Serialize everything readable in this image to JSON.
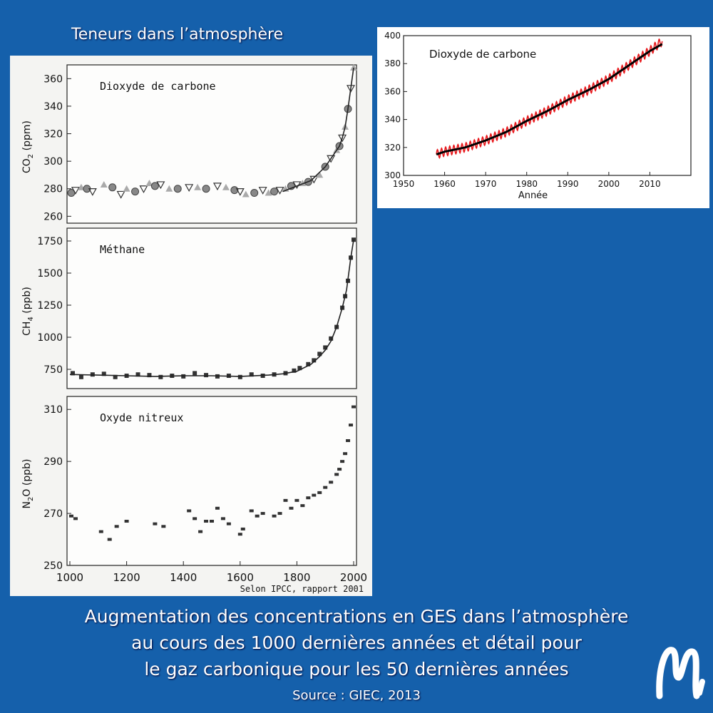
{
  "top_title": "Teneurs dans l’atmosphère",
  "caption": [
    "Augmentation des concentrations en GES dans l’atmosphère",
    "au cours des 1000 dernières années et détail pour",
    "le gaz carbonique pour les 50 dernières années"
  ],
  "source": "Source : GIEC, 2013",
  "credit": "Selon IPCC, rapport 2001",
  "colors": {
    "background": "#1560ab",
    "recent_series_red": "#e8181c",
    "recent_series_black": "#000000",
    "marker_gray": "#999999",
    "marker_dark": "#333333"
  },
  "chart_data": [
    {
      "type": "scatter",
      "title": "Dioxyde de carbone",
      "ylabel": "CO2 (ppm)",
      "xlim": [
        1000,
        2000
      ],
      "ylim": [
        255,
        370
      ],
      "yticks": [
        260,
        280,
        300,
        320,
        340,
        360
      ],
      "grid": false,
      "x": [
        1005,
        1020,
        1040,
        1060,
        1080,
        1120,
        1150,
        1180,
        1200,
        1230,
        1260,
        1280,
        1300,
        1320,
        1350,
        1380,
        1420,
        1450,
        1480,
        1520,
        1550,
        1580,
        1600,
        1620,
        1650,
        1680,
        1700,
        1720,
        1740,
        1760,
        1780,
        1800,
        1820,
        1840,
        1860,
        1880,
        1900,
        1920,
        1940,
        1950,
        1960,
        1970,
        1980,
        1990,
        2000
      ],
      "y": [
        277,
        279,
        281,
        280,
        278,
        283,
        281,
        276,
        280,
        278,
        280,
        284,
        282,
        283,
        280,
        280,
        281,
        281,
        280,
        282,
        281,
        279,
        278,
        276,
        277,
        279,
        277,
        278,
        279,
        280,
        282,
        283,
        284,
        285,
        287,
        290,
        296,
        302,
        308,
        311,
        317,
        325,
        338,
        353,
        368
      ],
      "line_x": [
        1750,
        1800,
        1850,
        1900,
        1920,
        1940,
        1950,
        1960,
        1970,
        1980,
        1990,
        2000
      ],
      "line_y": [
        278,
        282,
        286,
        296,
        302,
        308,
        311,
        317,
        325,
        338,
        353,
        368
      ]
    },
    {
      "type": "scatter",
      "title": "Méthane",
      "ylabel": "CH4 (ppb)",
      "xlim": [
        1000,
        2000
      ],
      "ylim": [
        600,
        1850
      ],
      "yticks": [
        750,
        1000,
        1250,
        1500,
        1750
      ],
      "grid": false,
      "x": [
        1010,
        1040,
        1080,
        1120,
        1160,
        1200,
        1240,
        1280,
        1320,
        1360,
        1400,
        1440,
        1480,
        1520,
        1560,
        1600,
        1640,
        1680,
        1720,
        1760,
        1790,
        1810,
        1840,
        1860,
        1880,
        1900,
        1920,
        1940,
        1960,
        1970,
        1980,
        1990,
        2000
      ],
      "y": [
        720,
        690,
        710,
        715,
        690,
        700,
        710,
        705,
        690,
        700,
        695,
        720,
        705,
        695,
        700,
        690,
        710,
        700,
        710,
        720,
        740,
        760,
        790,
        820,
        870,
        920,
        990,
        1080,
        1230,
        1320,
        1440,
        1620,
        1760
      ],
      "line_x": [
        1000,
        1100,
        1200,
        1300,
        1400,
        1500,
        1600,
        1700,
        1750,
        1800,
        1850,
        1880,
        1900,
        1920,
        1940,
        1960,
        1975,
        1990,
        2000
      ],
      "line_y": [
        710,
        705,
        700,
        695,
        700,
        700,
        695,
        705,
        715,
        735,
        790,
        850,
        900,
        970,
        1080,
        1230,
        1370,
        1620,
        1760
      ]
    },
    {
      "type": "scatter",
      "title": "Oxyde nitreux",
      "ylabel": "N2O (ppb)",
      "xlim": [
        1000,
        2000
      ],
      "ylim": [
        250,
        315
      ],
      "yticks": [
        250,
        270,
        290,
        310
      ],
      "xticks": [
        1000,
        1200,
        1400,
        1600,
        1800,
        2000
      ],
      "grid": false,
      "x": [
        1005,
        1020,
        1110,
        1140,
        1165,
        1200,
        1300,
        1330,
        1420,
        1440,
        1460,
        1480,
        1500,
        1520,
        1540,
        1560,
        1600,
        1610,
        1640,
        1660,
        1680,
        1720,
        1740,
        1760,
        1780,
        1800,
        1820,
        1840,
        1860,
        1880,
        1900,
        1920,
        1940,
        1950,
        1960,
        1970,
        1980,
        1990,
        2000
      ],
      "y": [
        269,
        268,
        263,
        260,
        265,
        267,
        266,
        265,
        271,
        268,
        263,
        267,
        267,
        272,
        268,
        266,
        262,
        264,
        271,
        269,
        270,
        269,
        270,
        275,
        272,
        275,
        273,
        276,
        277,
        278,
        280,
        282,
        285,
        287,
        290,
        293,
        298,
        304,
        311
      ]
    },
    {
      "type": "line",
      "title": "Dioxyde de carbone",
      "xlabel": "Année",
      "xlim": [
        1950,
        2020
      ],
      "ylim": [
        300,
        400
      ],
      "xticks": [
        1950,
        1960,
        1970,
        1980,
        1990,
        2000,
        2010
      ],
      "yticks": [
        300,
        320,
        340,
        360,
        380,
        400
      ],
      "grid": false,
      "series": [
        {
          "color": "#e8181c",
          "x": [
            1958,
            1960,
            1965,
            1970,
            1975,
            1980,
            1985,
            1990,
            1995,
            2000,
            2005,
            2010,
            2013
          ],
          "y": [
            315,
            317,
            320,
            325,
            331,
            339,
            346,
            354,
            361,
            369,
            379,
            389,
            396
          ]
        },
        {
          "color": "#000000",
          "x": [
            1958,
            1960,
            1965,
            1970,
            1975,
            1980,
            1985,
            1990,
            1995,
            2000,
            2005,
            2010,
            2013
          ],
          "y": [
            315,
            317,
            320,
            325,
            331,
            339,
            346,
            354,
            361,
            369,
            379,
            389,
            394
          ]
        }
      ]
    }
  ]
}
